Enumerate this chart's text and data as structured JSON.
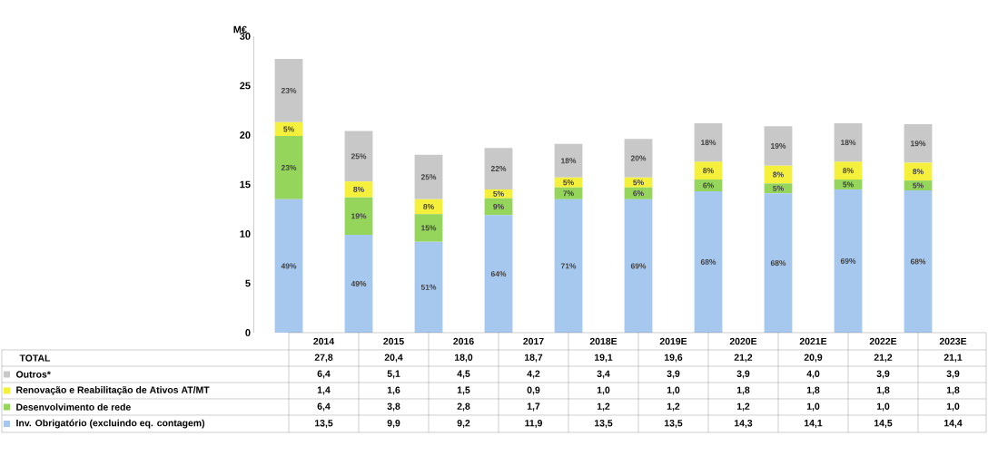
{
  "chart_data": {
    "type": "bar",
    "stacked": true,
    "ylabel": "M€",
    "categories": [
      "2014",
      "2015",
      "2016",
      "2017",
      "2018E",
      "2019E",
      "2020E",
      "2021E",
      "2022E",
      "2023E"
    ],
    "ylim": [
      0,
      30
    ],
    "yticks": [
      0,
      5,
      10,
      15,
      20,
      25,
      30
    ],
    "legend": "bottom left",
    "annotations": [
      "TOTAL",
      "49%",
      "49%",
      "51%",
      "64%",
      "71%",
      "69%",
      "68%",
      "68%",
      "69%",
      "68%",
      "23%",
      "19%",
      "15%",
      "9%",
      "7%",
      "6%",
      "6%",
      "5%",
      "5%",
      "5%",
      "5%",
      "8%",
      "8%",
      "5%",
      "5%",
      "5%",
      "8%",
      "8%",
      "8%",
      "8%",
      "23%",
      "25%",
      "25%",
      "22%",
      "18%",
      "20%",
      "18%",
      "19%",
      "18%",
      "19%"
    ],
    "totals": [
      "27,8",
      "20,4",
      "18,0",
      "18,7",
      "19,1",
      "19,6",
      "21,2",
      "20,9",
      "21,2",
      "21,1"
    ],
    "series": [
      {
        "name": "Inv. Obrigatório (excluindo eq. contagem)",
        "color": "#a6c8ee",
        "values": [
          13.5,
          9.9,
          9.2,
          11.9,
          13.5,
          13.5,
          14.3,
          14.1,
          14.5,
          14.4
        ],
        "value_labels": [
          "13,5",
          "9,9",
          "9,2",
          "11,9",
          "13,5",
          "13,5",
          "14,3",
          "14,1",
          "14,5",
          "14,4"
        ]
      },
      {
        "name": "Desenvolvimento de rede",
        "color": "#95d55c",
        "values": [
          6.4,
          3.8,
          2.8,
          1.7,
          1.2,
          1.2,
          1.2,
          1.0,
          1.0,
          1.0
        ],
        "value_labels": [
          "6,4",
          "3,8",
          "2,8",
          "1,7",
          "1,2",
          "1,2",
          "1,2",
          "1,0",
          "1,0",
          "1,0"
        ]
      },
      {
        "name": "Renovação e Reabilitação de Ativos AT/MT",
        "color": "#f5f03c",
        "values": [
          1.4,
          1.6,
          1.5,
          0.9,
          1.0,
          1.0,
          1.8,
          1.8,
          1.8,
          1.8
        ],
        "value_labels": [
          "1,4",
          "1,6",
          "1,5",
          "0,9",
          "1,0",
          "1,0",
          "1,8",
          "1,8",
          "1,8",
          "1,8"
        ]
      },
      {
        "name": "Outros*",
        "color": "#c8c8c8",
        "values": [
          6.4,
          5.1,
          4.5,
          4.2,
          3.4,
          3.9,
          3.9,
          4.0,
          3.9,
          3.9
        ],
        "value_labels": [
          "6,4",
          "5,1",
          "4,5",
          "4,2",
          "3,4",
          "3,9",
          "3,9",
          "4,0",
          "3,9",
          "3,9"
        ]
      }
    ]
  }
}
